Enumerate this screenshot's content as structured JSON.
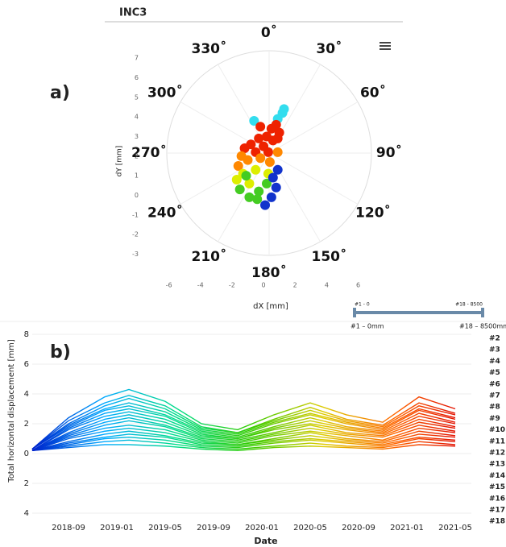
{
  "chart_data": [
    {
      "type": "scatter",
      "title": "INC3",
      "panel_label": "a)",
      "xlabel": "dX [mm]",
      "ylabel": "dY [mm]",
      "xlim": [
        -7,
        7.3
      ],
      "ylim": [
        -3.6,
        7.5
      ],
      "xticks": [
        -6,
        -4,
        -2,
        0,
        2,
        4,
        6
      ],
      "yticks": [
        7,
        6,
        5,
        4,
        3,
        2,
        1,
        0,
        -1,
        -2,
        -3
      ],
      "angle_labels": [
        "0˚",
        "30˚",
        "60˚",
        "90˚",
        "120˚",
        "150˚",
        "180˚",
        "210˚",
        "240˚",
        "270˚",
        "300˚",
        "330˚"
      ],
      "x": [
        1.2,
        1.3,
        -0.6,
        0.9,
        0.8,
        0.5,
        1.0,
        0.2,
        0.6,
        -0.3,
        0.0,
        -0.8,
        -0.5,
        0.3,
        -1.2,
        0.9,
        -0.2,
        -1.4,
        -1.0,
        0.4,
        -0.2,
        0.9,
        -1.6,
        -1.3,
        -0.5,
        0.3,
        -1.7,
        -0.9,
        -1.5,
        -0.9,
        -0.3,
        0.2,
        -1.1,
        -0.4,
        0.6,
        0.8,
        0.5,
        0.1,
        0.9
      ],
      "y": [
        4.2,
        4.4,
        3.8,
        3.9,
        3.6,
        3.4,
        3.2,
        3.0,
        2.8,
        2.9,
        2.5,
        2.6,
        2.2,
        2.2,
        2.4,
        2.9,
        3.5,
        2.0,
        1.8,
        1.7,
        1.9,
        2.2,
        1.5,
        1.1,
        1.3,
        1.1,
        0.8,
        0.6,
        0.3,
        -0.1,
        0.2,
        0.6,
        1.0,
        -0.2,
        0.9,
        0.4,
        -0.1,
        -0.5,
        1.3
      ],
      "colors": [
        "#33ddee",
        "#33ddee",
        "#33ddee",
        "#33ddee",
        "#ee2200",
        "#ee2200",
        "#ee2200",
        "#ee2200",
        "#ee2200",
        "#ee2200",
        "#ee2200",
        "#ee2200",
        "#ee2200",
        "#ee2200",
        "#ee2200",
        "#ee2200",
        "#ee2200",
        "#ff8800",
        "#ff8800",
        "#ff8800",
        "#ff8800",
        "#ff8800",
        "#ff8800",
        "#ddee00",
        "#ddee00",
        "#ddee00",
        "#ddee00",
        "#ddee00",
        "#44cc22",
        "#44cc22",
        "#44cc22",
        "#44cc22",
        "#44cc22",
        "#44cc22",
        "#1133cc",
        "#1133cc",
        "#1133cc",
        "#1133cc",
        "#1133cc"
      ],
      "slider": {
        "start_label": "#1 - 0",
        "end_label": "#18 - 8500",
        "start_caption": "#1 – 0mm",
        "end_caption": "#18 – 8500mm"
      }
    },
    {
      "type": "line",
      "panel_label": "b)",
      "xlabel": "Date",
      "ylabel": "Total horizontal displacement [mm]",
      "xlim": [
        "2018-06",
        "2021-06"
      ],
      "xticks": [
        "2018-09",
        "2019-01",
        "2019-05",
        "2019-09",
        "2020-01",
        "2020-05",
        "2020-09",
        "2021-01",
        "2021-05"
      ],
      "ylim": [
        -4,
        8
      ],
      "yticks": [
        8,
        6,
        4,
        2,
        0,
        {
          "value": -2,
          "label": "2"
        },
        {
          "value": -4,
          "label": "4"
        }
      ],
      "grid": true,
      "color_scale": [
        "#0022cc",
        "#00aaff",
        "#00dd88",
        "#33cc00",
        "#ddcc00",
        "#ff6600",
        "#dd0000"
      ],
      "x": [
        "2018-06",
        "2018-09",
        "2018-12",
        "2019-02",
        "2019-05",
        "2019-08",
        "2019-11",
        "2020-02",
        "2020-05",
        "2020-08",
        "2020-11",
        "2021-02",
        "2021-05"
      ],
      "series": [
        {
          "name": "#2",
          "values": [
            0.2,
            0.4,
            0.6,
            0.6,
            0.5,
            0.3,
            0.2,
            0.4,
            0.5,
            0.4,
            0.3,
            0.6,
            0.5
          ]
        },
        {
          "name": "#3",
          "values": [
            0.2,
            0.5,
            0.8,
            0.9,
            0.7,
            0.4,
            0.3,
            0.5,
            0.7,
            0.5,
            0.4,
            0.8,
            0.6
          ]
        },
        {
          "name": "#4",
          "values": [
            0.2,
            0.6,
            1.0,
            1.1,
            0.9,
            0.5,
            0.4,
            0.7,
            0.9,
            0.7,
            0.5,
            1.0,
            0.8
          ]
        },
        {
          "name": "#5",
          "values": [
            0.2,
            0.7,
            1.1,
            1.3,
            1.1,
            0.6,
            0.5,
            0.8,
            1.0,
            0.8,
            0.6,
            1.1,
            0.9
          ]
        },
        {
          "name": "#6",
          "values": [
            0.2,
            0.8,
            1.3,
            1.5,
            1.2,
            0.7,
            0.6,
            0.9,
            1.2,
            0.9,
            0.7,
            1.3,
            1.1
          ]
        },
        {
          "name": "#7",
          "values": [
            0.2,
            1.0,
            1.5,
            1.7,
            1.4,
            0.8,
            0.6,
            1.0,
            1.4,
            1.0,
            0.8,
            1.5,
            1.2
          ]
        },
        {
          "name": "#8",
          "values": [
            0.2,
            1.1,
            1.7,
            1.9,
            1.6,
            0.9,
            0.7,
            1.2,
            1.5,
            1.2,
            0.9,
            1.7,
            1.4
          ]
        },
        {
          "name": "#9",
          "values": [
            0.2,
            1.2,
            1.9,
            2.2,
            1.8,
            1.0,
            0.8,
            1.3,
            1.7,
            1.3,
            1.1,
            1.9,
            1.5
          ]
        },
        {
          "name": "#10",
          "values": [
            0.2,
            1.3,
            2.1,
            2.4,
            1.9,
            1.1,
            0.9,
            1.4,
            1.9,
            1.4,
            1.2,
            2.1,
            1.7
          ]
        },
        {
          "name": "#11",
          "values": [
            0.2,
            1.4,
            2.3,
            2.6,
            2.1,
            1.2,
            1.0,
            1.6,
            2.0,
            1.6,
            1.3,
            2.3,
            1.8
          ]
        },
        {
          "name": "#12",
          "values": [
            0.2,
            1.6,
            2.5,
            2.8,
            2.3,
            1.3,
            1.0,
            1.7,
            2.2,
            1.7,
            1.4,
            2.5,
            2.0
          ]
        },
        {
          "name": "#13",
          "values": [
            0.2,
            1.7,
            2.7,
            3.0,
            2.5,
            1.4,
            1.1,
            1.8,
            2.4,
            1.8,
            1.5,
            2.7,
            2.1
          ]
        },
        {
          "name": "#14",
          "values": [
            0.3,
            1.8,
            2.9,
            3.2,
            2.6,
            1.5,
            1.2,
            2.0,
            2.6,
            2.0,
            1.6,
            2.9,
            2.3
          ]
        },
        {
          "name": "#15",
          "values": [
            0.3,
            1.9,
            3.0,
            3.4,
            2.8,
            1.6,
            1.3,
            2.1,
            2.7,
            2.1,
            1.7,
            3.0,
            2.4
          ]
        },
        {
          "name": "#16",
          "values": [
            0.3,
            2.0,
            3.2,
            3.7,
            3.0,
            1.7,
            1.4,
            2.2,
            2.9,
            2.2,
            1.8,
            3.2,
            2.6
          ]
        },
        {
          "name": "#17",
          "values": [
            0.3,
            2.2,
            3.4,
            3.9,
            3.2,
            1.8,
            1.4,
            2.3,
            3.1,
            2.3,
            1.9,
            3.4,
            2.7
          ]
        },
        {
          "name": "#18",
          "values": [
            0.3,
            2.4,
            3.8,
            4.3,
            3.5,
            2.0,
            1.6,
            2.6,
            3.4,
            2.6,
            2.1,
            3.8,
            3.0
          ]
        }
      ]
    }
  ]
}
